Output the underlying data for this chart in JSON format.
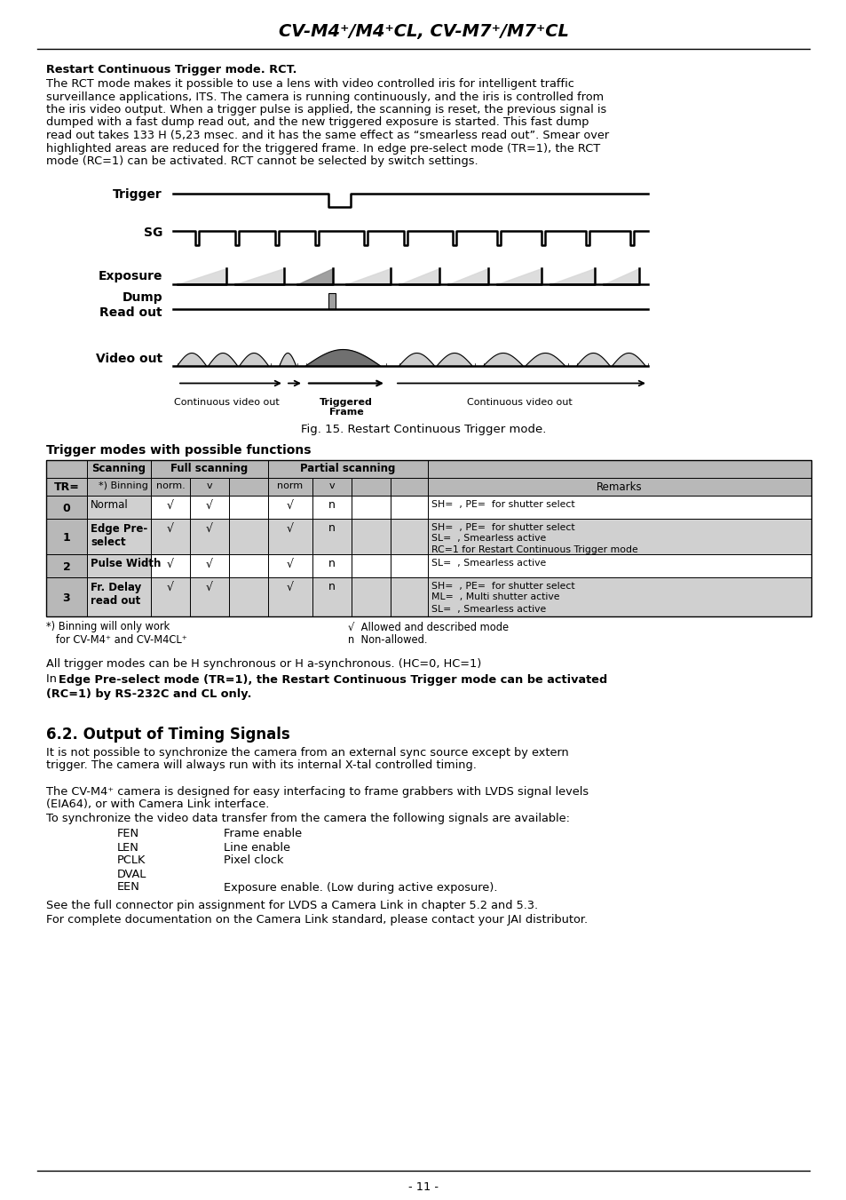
{
  "title": "CV-M4⁺/M4⁺CL, CV-M7⁺/M7⁺CL",
  "bg_color": "#ffffff",
  "text_color": "#000000",
  "page_number": "- 11 -",
  "section_heading": "Restart Continuous Trigger mode. RCT.",
  "section_body_lines": [
    "The RCT mode makes it possible to use a lens with video controlled iris for intelligent traffic",
    "surveillance applications, ITS. The camera is running continuously, and the iris is controlled from",
    "the iris video output. When a trigger pulse is applied, the scanning is reset, the previous signal is",
    "dumped with a fast dump read out, and the new triggered exposure is started. This fast dump",
    "read out takes 133 H (5,23 msec. and it has the same effect as “smearless read out”. Smear over",
    "highlighted areas are reduced for the triggered frame. In edge pre-select mode (TR=1), the RCT",
    "mode (RC=1) can be activated. RCT cannot be selected by switch settings."
  ],
  "fig_caption": "Fig. 15. Restart Continuous Trigger mode.",
  "table_heading": "Trigger modes with possible functions",
  "table_note1_line1": "*) Binning will only work",
  "table_note1_line2": "   for CV-M4⁺ and CV-M4CL⁺",
  "table_note2_line1": "√  Allowed and described mode",
  "table_note2_line2": "n  Non-allowed.",
  "body_text1": "All trigger modes can be H synchronous or H a-synchronous. (HC=0, HC=1)",
  "body_text2_prefix": "In ",
  "body_text2_bold": "Edge Pre-select mode (TR=1), the Restart Continuous Trigger mode can be activated",
  "body_text2_bold2": "(RC=1) by RS-232C and CL only.",
  "section62_heading": "6.2. Output of Timing Signals",
  "section62_body1_l1": "It is not possible to synchronize the camera from an external sync source except by extern",
  "section62_body1_l2": "trigger. The camera will always run with its internal X-tal controlled timing.",
  "section62_body2_l1": "The CV-M4⁺ camera is designed for easy interfacing to frame grabbers with LVDS signal levels",
  "section62_body2_l2": "(EIA64), or with Camera Link interface.",
  "section62_body2_l3": "To synchronize the video data transfer from the camera the following signals are available:",
  "signals": [
    [
      "FEN",
      "Frame enable"
    ],
    [
      "LEN",
      "Line enable"
    ],
    [
      "PCLK",
      "Pixel clock"
    ],
    [
      "DVAL",
      ""
    ],
    [
      "EEN",
      "Exposure enable. (Low during active exposure)."
    ]
  ],
  "section62_body3_l1": "See the full connector pin assignment for LVDS a Camera Link in chapter 5.2 and 5.3.",
  "section62_body3_l2": "For complete documentation on the Camera Link standard, please contact your JAI distributor.",
  "gray_header": "#b8b8b8",
  "gray_name_col": "#d0d0d0",
  "gray_row": "#e8e8e8"
}
